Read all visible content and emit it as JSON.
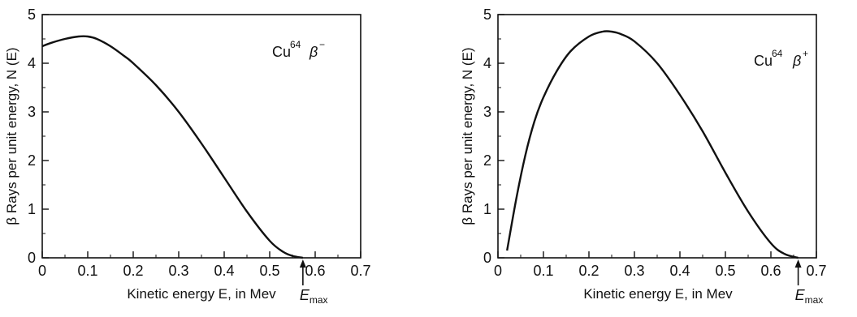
{
  "chart_data": [
    {
      "type": "line",
      "title": "",
      "xlabel": "Kinetic energy E, in Mev",
      "ylabel": "β Rays per unit energy, N (E)",
      "xlim": [
        0,
        0.7
      ],
      "ylim": [
        0,
        5
      ],
      "xticks": [
        "0",
        "0.1",
        "0.2",
        "0.3",
        "0.4",
        "0.5",
        "0.6",
        "0.7"
      ],
      "yticks": [
        "0",
        "1",
        "2",
        "3",
        "4",
        "5"
      ],
      "grid": false,
      "annotation": {
        "isotope": "Cu",
        "mass": "64",
        "particle": "β",
        "charge": "−"
      },
      "marker": {
        "label": "E",
        "subscript": "max",
        "x": 0.573
      },
      "series": [
        {
          "x": [
            0,
            0.02,
            0.05,
            0.08,
            0.1,
            0.12,
            0.15,
            0.18,
            0.2,
            0.25,
            0.3,
            0.35,
            0.4,
            0.45,
            0.5,
            0.53,
            0.55,
            0.573
          ],
          "y": [
            4.35,
            4.42,
            4.5,
            4.55,
            4.55,
            4.5,
            4.35,
            4.15,
            4.0,
            3.55,
            3.0,
            2.35,
            1.65,
            0.95,
            0.35,
            0.12,
            0.04,
            0
          ]
        }
      ]
    },
    {
      "type": "line",
      "title": "",
      "xlabel": "Kinetic energy E, in Mev",
      "ylabel": "β Rays per unit energy, N (E)",
      "xlim": [
        0,
        0.7
      ],
      "ylim": [
        0,
        5
      ],
      "xticks": [
        "0",
        "0.1",
        "0.2",
        "0.3",
        "0.4",
        "0.5",
        "0.6",
        "0.7"
      ],
      "yticks": [
        "0",
        "1",
        "2",
        "3",
        "4",
        "5"
      ],
      "grid": false,
      "annotation": {
        "isotope": "Cu",
        "mass": "64",
        "particle": "β",
        "charge": "+"
      },
      "marker": {
        "label": "E",
        "subscript": "max",
        "x": 0.66
      },
      "series": [
        {
          "x": [
            0.02,
            0.04,
            0.06,
            0.08,
            0.1,
            0.13,
            0.16,
            0.2,
            0.23,
            0.25,
            0.27,
            0.3,
            0.35,
            0.4,
            0.45,
            0.5,
            0.55,
            0.6,
            0.63,
            0.66
          ],
          "y": [
            0.15,
            1.2,
            2.1,
            2.8,
            3.3,
            3.85,
            4.25,
            4.55,
            4.65,
            4.65,
            4.6,
            4.45,
            4.0,
            3.35,
            2.6,
            1.75,
            0.95,
            0.3,
            0.08,
            0
          ]
        }
      ]
    }
  ]
}
